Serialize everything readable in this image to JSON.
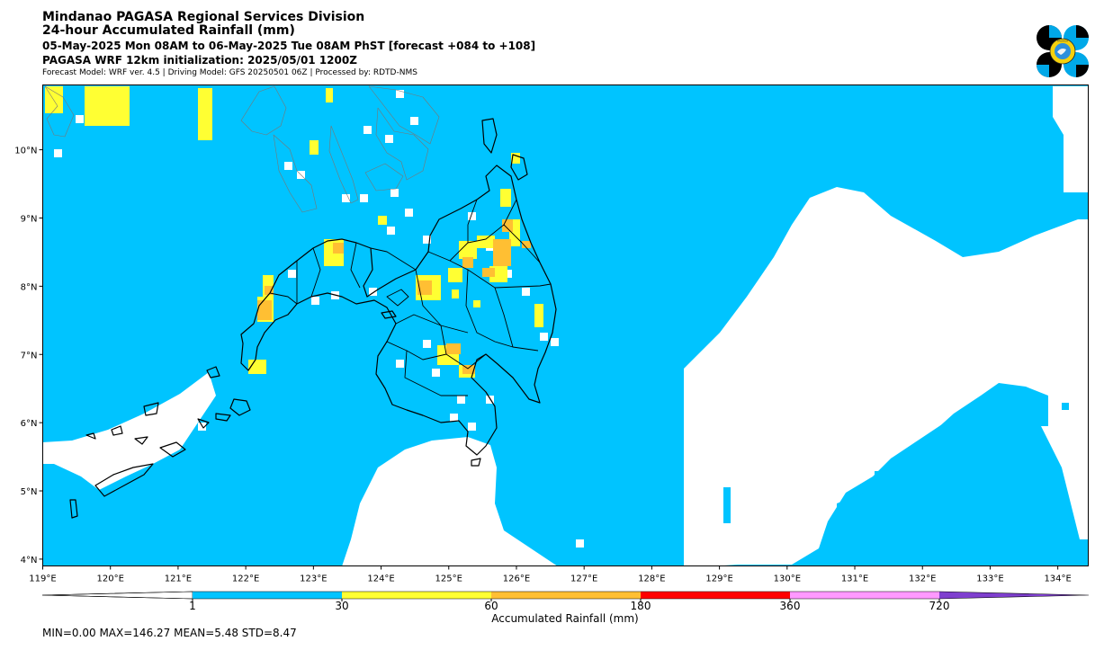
{
  "header": {
    "line1": "Mindanao PAGASA Regional Services Division",
    "line2": "24-hour Accumulated Rainfall (mm)",
    "line3": "05-May-2025 Mon 08AM to 06-May-2025 Tue 08AM PhST [forecast +084 to +108]",
    "line4": "PAGASA WRF 12km initialization: 2025/05/01 1200Z",
    "line5": "Forecast Model: WRF ver. 4.5 | Driving Model: GFS 20250501 06Z | Processed by: RDTD-NMS"
  },
  "logo": {
    "name": "pagasa-logo",
    "text": "PAGASA"
  },
  "map": {
    "lon_range": [
      119,
      134.45
    ],
    "lat_range": [
      3.9,
      10.95
    ],
    "lon_ticks": [
      "119°E",
      "120°E",
      "121°E",
      "122°E",
      "123°E",
      "124°E",
      "125°E",
      "126°E",
      "127°E",
      "128°E",
      "129°E",
      "130°E",
      "131°E",
      "132°E",
      "133°E",
      "134°E"
    ],
    "lat_ticks": [
      "4°N",
      "5°N",
      "6°N",
      "7°N",
      "8°N",
      "9°N",
      "10°N"
    ],
    "colors": {
      "sea_rain": "#00c4ff",
      "dry": "#ffffff",
      "low": "#ffff33",
      "mid": "#ffbf33",
      "coast": "#000000"
    }
  },
  "colorbar": {
    "label": "Accumulated Rainfall (mm)",
    "ticks": [
      "1",
      "30",
      "60",
      "180",
      "360",
      "720"
    ],
    "colors": [
      "#ffffff",
      "#00c4ff",
      "#ffff33",
      "#ffbf33",
      "#ff0000",
      "#ff99ff",
      "#7f3fcf"
    ]
  },
  "stats": "MIN=0.00   MAX=146.27   MEAN=5.48   STD=8.47"
}
